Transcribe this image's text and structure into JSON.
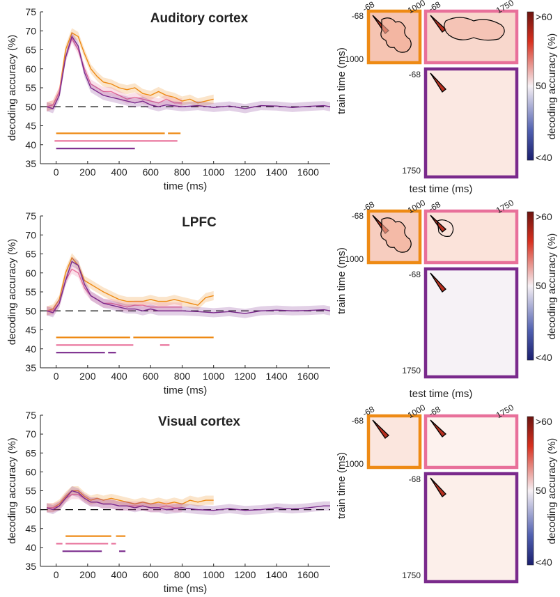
{
  "colors": {
    "orange": "#ee8a14",
    "pink": "#e8709a",
    "purple": "#7a2a8c",
    "chance": "#000000"
  },
  "chart_data": [
    {
      "type": "line",
      "title": "Auditory cortex",
      "xlabel": "time (ms)",
      "ylabel": "decoding accuracy (%)",
      "xlim": [
        -100,
        1740
      ],
      "ylim": [
        35,
        75
      ],
      "xticks": [
        0,
        200,
        400,
        600,
        800,
        1000,
        1200,
        1400,
        1600
      ],
      "yticks": [
        35,
        40,
        45,
        50,
        55,
        60,
        65,
        70,
        75
      ],
      "chance_level": 50,
      "series": [
        {
          "color": "orange",
          "x": [
            -60,
            -20,
            20,
            60,
            100,
            140,
            180,
            220,
            260,
            300,
            350,
            400,
            450,
            500,
            550,
            600,
            650,
            700,
            750,
            800,
            850,
            900,
            950,
            1000
          ],
          "y": [
            50,
            50.5,
            54,
            65,
            69.5,
            68.5,
            64,
            60,
            58,
            56.5,
            56,
            55,
            54.5,
            55,
            53.5,
            53,
            54,
            53,
            52.5,
            51.5,
            52,
            51,
            51.5,
            52
          ]
        },
        {
          "color": "pink",
          "x": [
            -60,
            -20,
            20,
            60,
            100,
            140,
            180,
            220,
            260,
            300,
            350,
            400,
            450,
            500,
            550,
            600,
            650,
            700,
            750,
            800
          ],
          "y": [
            50,
            50.5,
            54,
            63,
            68,
            65,
            60,
            56,
            55,
            54,
            54,
            53,
            52,
            52.5,
            52,
            51.5,
            51,
            52,
            51,
            51
          ]
        },
        {
          "color": "purple",
          "x": [
            -60,
            -20,
            20,
            60,
            100,
            140,
            180,
            220,
            260,
            300,
            350,
            400,
            450,
            500,
            550,
            600,
            650,
            700,
            800,
            900,
            1000,
            1100,
            1200,
            1300,
            1400,
            1500,
            1600,
            1700,
            1740
          ],
          "y": [
            50,
            49.5,
            53,
            63,
            68.5,
            66,
            59,
            55,
            54,
            53,
            52.5,
            52,
            51.5,
            51,
            51.5,
            50.5,
            50,
            50.5,
            50,
            50.3,
            49.8,
            50.2,
            49.5,
            50.3,
            50.2,
            49.8,
            50.1,
            50.3,
            50
          ]
        }
      ],
      "significance": [
        {
          "color": "orange",
          "segments": [
            [
              0,
              690
            ],
            [
              710,
              790
            ]
          ]
        },
        {
          "color": "pink",
          "segments": [
            [
              -10,
              770
            ]
          ]
        },
        {
          "color": "purple",
          "segments": [
            [
              0,
              500
            ]
          ]
        }
      ]
    },
    {
      "type": "line",
      "title": "LPFC",
      "xlabel": "time (ms)",
      "ylabel": "decoding accuracy (%)",
      "xlim": [
        -100,
        1740
      ],
      "ylim": [
        35,
        75
      ],
      "xticks": [
        0,
        200,
        400,
        600,
        800,
        1000,
        1200,
        1400,
        1600
      ],
      "yticks": [
        35,
        40,
        45,
        50,
        55,
        60,
        65,
        70,
        75
      ],
      "chance_level": 50,
      "series": [
        {
          "color": "orange",
          "x": [
            -60,
            -20,
            20,
            60,
            100,
            140,
            180,
            220,
            260,
            300,
            350,
            400,
            450,
            500,
            550,
            600,
            650,
            700,
            750,
            800,
            850,
            900,
            950,
            1000
          ],
          "y": [
            50,
            50.5,
            53,
            60,
            64,
            62,
            58,
            57,
            56,
            55,
            54,
            53,
            52.5,
            52.5,
            52.5,
            53,
            52.5,
            52.5,
            53,
            52.5,
            52,
            51.5,
            53.5,
            54
          ]
        },
        {
          "color": "pink",
          "x": [
            -60,
            -20,
            20,
            60,
            100,
            140,
            180,
            220,
            260,
            300,
            350,
            400,
            450,
            500,
            550,
            600,
            650,
            700,
            750,
            800
          ],
          "y": [
            50,
            50,
            52,
            58,
            61,
            60,
            56,
            54,
            53,
            52,
            52,
            51.5,
            51,
            51.5,
            51.5,
            51,
            51,
            51,
            51,
            51
          ]
        },
        {
          "color": "purple",
          "x": [
            -60,
            -20,
            20,
            60,
            100,
            140,
            180,
            220,
            260,
            300,
            350,
            400,
            450,
            500,
            550,
            600,
            650,
            700,
            800,
            900,
            1000,
            1100,
            1200,
            1300,
            1400,
            1500,
            1600,
            1700,
            1740
          ],
          "y": [
            50,
            49.5,
            52,
            58,
            63,
            62,
            57,
            54,
            53,
            52,
            51.5,
            51,
            50.5,
            50.5,
            50,
            50.5,
            50,
            50,
            50,
            49.8,
            49.5,
            49.8,
            49.3,
            50,
            50.2,
            50,
            50.1,
            50.3,
            50
          ]
        }
      ],
      "significance": [
        {
          "color": "orange",
          "segments": [
            [
              0,
              470
            ],
            [
              490,
              1000
            ]
          ]
        },
        {
          "color": "pink",
          "segments": [
            [
              0,
              490
            ],
            [
              660,
              720
            ]
          ]
        },
        {
          "color": "purple",
          "segments": [
            [
              0,
              310
            ],
            [
              330,
              380
            ]
          ]
        }
      ]
    },
    {
      "type": "line",
      "title": "Visual cortex",
      "xlabel": "time (ms)",
      "ylabel": "decoding accuracy (%)",
      "xlim": [
        -100,
        1740
      ],
      "ylim": [
        35,
        75
      ],
      "xticks": [
        0,
        200,
        400,
        600,
        800,
        1000,
        1200,
        1400,
        1600
      ],
      "yticks": [
        35,
        40,
        45,
        50,
        55,
        60,
        65,
        70,
        75
      ],
      "chance_level": 50,
      "series": [
        {
          "color": "orange",
          "x": [
            -60,
            -20,
            20,
            60,
            100,
            140,
            180,
            220,
            260,
            300,
            350,
            400,
            450,
            500,
            550,
            600,
            650,
            700,
            750,
            800,
            850,
            900,
            950,
            1000
          ],
          "y": [
            50.5,
            50.5,
            51.5,
            53.5,
            55,
            55,
            53.5,
            52.5,
            53,
            52.5,
            53,
            52.5,
            52,
            51.5,
            52,
            51.5,
            52,
            51.5,
            52,
            51.5,
            52.5,
            52,
            52.5,
            52.5
          ]
        },
        {
          "color": "pink",
          "x": [
            -60,
            -20,
            20,
            60,
            100,
            140,
            180,
            220,
            260,
            300,
            350,
            400,
            450,
            500,
            550,
            600,
            650,
            700,
            750,
            800
          ],
          "y": [
            50.5,
            50.5,
            51,
            53,
            54,
            54,
            53,
            52,
            52,
            51.5,
            51.5,
            51,
            51,
            51,
            51,
            50.5,
            50.5,
            51,
            50.5,
            50.5
          ]
        },
        {
          "color": "purple",
          "x": [
            -60,
            -20,
            20,
            60,
            100,
            140,
            180,
            220,
            260,
            300,
            350,
            400,
            450,
            500,
            550,
            600,
            650,
            700,
            800,
            900,
            1000,
            1100,
            1200,
            1300,
            1400,
            1500,
            1600,
            1700,
            1740
          ],
          "y": [
            50.5,
            50,
            51,
            53,
            55,
            54.5,
            53,
            52,
            52,
            51.5,
            51.5,
            51,
            51,
            50.5,
            51,
            50.5,
            50.5,
            50,
            50.5,
            50,
            49.8,
            50.3,
            49.8,
            50,
            50.5,
            50.2,
            50.5,
            51,
            51
          ]
        }
      ],
      "significance": [
        {
          "color": "orange",
          "segments": [
            [
              60,
              350
            ],
            [
              380,
              440
            ]
          ]
        },
        {
          "color": "pink",
          "segments": [
            [
              0,
              40
            ],
            [
              60,
              330
            ],
            [
              350,
              380
            ]
          ]
        },
        {
          "color": "purple",
          "segments": [
            [
              40,
              290
            ],
            [
              400,
              440
            ]
          ]
        }
      ]
    },
    {
      "type": "heatmap",
      "xlabel": "test time (ms)",
      "ylabel": "train time (ms)",
      "tick_labels": [
        "-68",
        "1000",
        "-68",
        "1750",
        "-68",
        "1750"
      ],
      "colorbar": {
        "label": "decoding accuracy (%)",
        "ticks": [
          ">60",
          "50",
          "<40"
        ]
      }
    }
  ]
}
